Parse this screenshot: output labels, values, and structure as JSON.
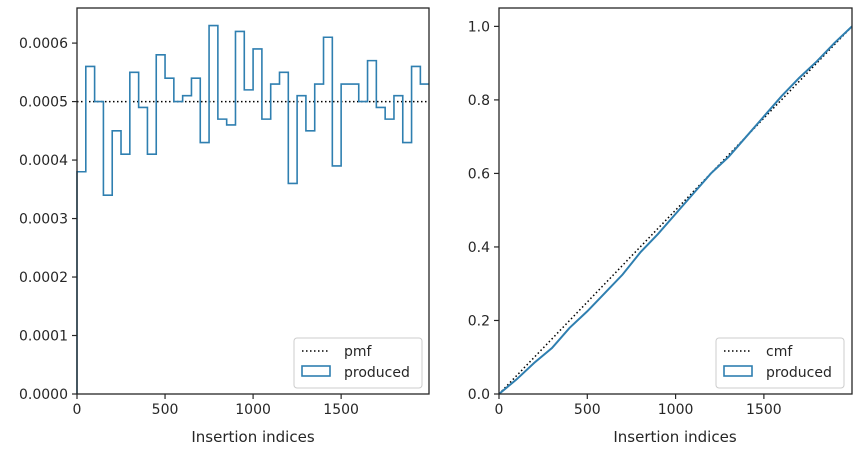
{
  "chart_data": [
    {
      "type": "step",
      "xlabel": "Insertion indices",
      "ylabel": "",
      "xlim": [
        0,
        1999
      ],
      "ylim": [
        0,
        0.00066
      ],
      "xticks": [
        0,
        500,
        1000,
        1500
      ],
      "xtick_labels": [
        "0",
        "500",
        "1000",
        "1500"
      ],
      "yticks": [
        0,
        0.0001,
        0.0002,
        0.0003,
        0.0004,
        0.0005,
        0.0006
      ],
      "ytick_labels": [
        "0.0000",
        "0.0001",
        "0.0002",
        "0.0003",
        "0.0004",
        "0.0005",
        "0.0006"
      ],
      "grid": false,
      "legend_position": "lower-right",
      "reference": {
        "name": "pmf",
        "style": "dotted",
        "color": "#000000",
        "value": 0.0005
      },
      "series": [
        {
          "name": "produced",
          "color": "#2f7fb0",
          "bin_width": 50,
          "values": [
            0.00038,
            0.00056,
            0.0005,
            0.00034,
            0.00045,
            0.00041,
            0.00055,
            0.00049,
            0.00041,
            0.00058,
            0.00054,
            0.0005,
            0.00051,
            0.00054,
            0.00043,
            0.00063,
            0.00047,
            0.00046,
            0.00062,
            0.00052,
            0.00059,
            0.00047,
            0.00053,
            0.00055,
            0.00036,
            0.00051,
            0.00045,
            0.00053,
            0.00061,
            0.00039,
            0.00053,
            0.00053,
            0.0005,
            0.00057,
            0.00049,
            0.00047,
            0.00051,
            0.00043,
            0.00056,
            0.00053
          ]
        }
      ]
    },
    {
      "type": "line",
      "xlabel": "Insertion indices",
      "ylabel": "",
      "xlim": [
        0,
        1999
      ],
      "ylim": [
        0,
        1.05
      ],
      "xticks": [
        0,
        500,
        1000,
        1500
      ],
      "xtick_labels": [
        "0",
        "500",
        "1000",
        "1500"
      ],
      "yticks": [
        0.0,
        0.2,
        0.4,
        0.6,
        0.8,
        1.0
      ],
      "ytick_labels": [
        "0.0",
        "0.2",
        "0.4",
        "0.6",
        "0.8",
        "1.0"
      ],
      "grid": false,
      "legend_position": "lower-right",
      "reference": {
        "name": "cmf",
        "style": "dotted",
        "color": "#000000",
        "x": [
          0,
          1999
        ],
        "values": [
          0,
          1.0
        ]
      },
      "series": [
        {
          "name": "produced",
          "color": "#2f7fb0",
          "x": [
            0,
            100,
            200,
            300,
            400,
            500,
            600,
            700,
            800,
            900,
            1000,
            1100,
            1200,
            1300,
            1400,
            1500,
            1600,
            1700,
            1800,
            1900,
            1999
          ],
          "values": [
            0.0,
            0.04,
            0.085,
            0.125,
            0.18,
            0.225,
            0.275,
            0.325,
            0.385,
            0.435,
            0.49,
            0.545,
            0.6,
            0.645,
            0.7,
            0.755,
            0.81,
            0.86,
            0.905,
            0.955,
            1.0
          ]
        }
      ]
    }
  ]
}
